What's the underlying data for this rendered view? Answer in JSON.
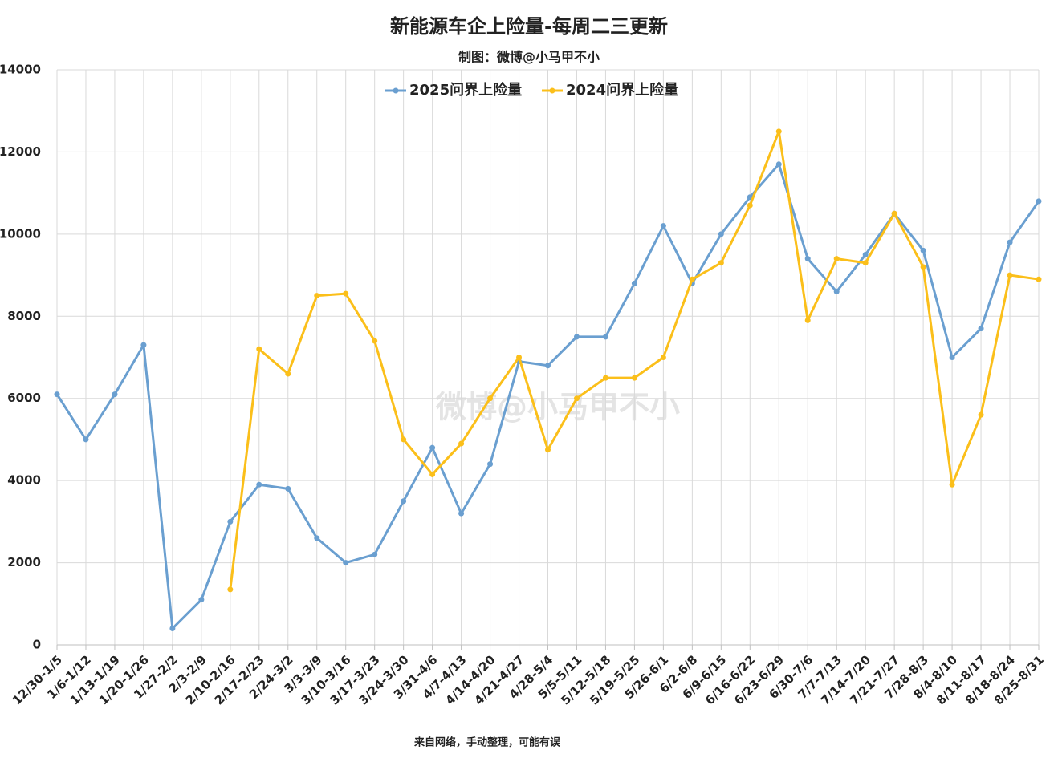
{
  "chart_data": {
    "type": "line",
    "title": "新能源车企上险量-每周二三更新",
    "subtitle": "制图：微博@小马甲不小",
    "watermark": "微博@小马甲不小",
    "footer": "来自网络，手动整理，可能有误",
    "categories": [
      "12/30-1/5",
      "1/6-1/12",
      "1/13-1/19",
      "1/20-1/26",
      "1/27-2/2",
      "2/3-2/9",
      "2/10-2/16",
      "2/17-2/23",
      "2/24-3/2",
      "3/3-3/9",
      "3/10-3/16",
      "3/17-3/23",
      "3/24-3/30",
      "3/31-4/6",
      "4/7-4/13",
      "4/14-4/20",
      "4/21-4/27",
      "4/28-5/4",
      "5/5-5/11",
      "5/12-5/18",
      "5/19-5/25",
      "5/26-6/1",
      "6/2-6/8",
      "6/9-6/15",
      "6/16-6/22",
      "6/23-6/29",
      "6/30-7/6",
      "7/7-7/13",
      "7/14-7/20",
      "7/21-7/27",
      "7/28-8/3",
      "8/4-8/10",
      "8/11-8/17",
      "8/18-8/24",
      "8/25-8/31"
    ],
    "series": [
      {
        "name": "2025问界上险量",
        "color": "#6a9fd0",
        "values": [
          6100,
          5000,
          6100,
          7300,
          400,
          1100,
          3000,
          3900,
          3800,
          2600,
          2000,
          2200,
          3500,
          4800,
          3200,
          4400,
          6900,
          6800,
          7500,
          7500,
          8800,
          10200,
          8800,
          10000,
          10900,
          11700,
          9400,
          8600,
          9500,
          10500,
          9600,
          7000,
          7700,
          9800,
          10800
        ]
      },
      {
        "name": "2024问界上险量",
        "color": "#fbbf1a",
        "values": [
          null,
          null,
          null,
          null,
          null,
          null,
          1350,
          7200,
          6600,
          8500,
          8550,
          7400,
          5000,
          4150,
          4900,
          6000,
          7000,
          4750,
          6000,
          6500,
          6500,
          7000,
          8900,
          9300,
          10700,
          12500,
          7900,
          9400,
          9300,
          10500,
          9200,
          3900,
          5600,
          9000,
          8900
        ]
      }
    ],
    "ylim": [
      0,
      14000
    ],
    "yticks": [
      0,
      2000,
      4000,
      6000,
      8000,
      10000,
      12000,
      14000
    ],
    "grid": true
  }
}
